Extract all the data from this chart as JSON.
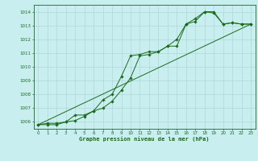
{
  "title": "Graphe pression niveau de la mer (hPa)",
  "bg_color": "#c8eef0",
  "grid_color": "#b0d8d8",
  "line_color": "#1a6b1a",
  "marker_color": "#1a6b1a",
  "xlim": [
    -0.5,
    23.5
  ],
  "ylim": [
    1005.5,
    1014.5
  ],
  "yticks": [
    1006,
    1007,
    1008,
    1009,
    1010,
    1011,
    1012,
    1013,
    1014
  ],
  "xticks": [
    0,
    1,
    2,
    3,
    4,
    5,
    6,
    7,
    8,
    9,
    10,
    11,
    12,
    13,
    14,
    15,
    16,
    17,
    18,
    19,
    20,
    21,
    22,
    23
  ],
  "line1": {
    "x": [
      0,
      1,
      2,
      3,
      4,
      5,
      6,
      7,
      8,
      9,
      10,
      11,
      12,
      13,
      14,
      15,
      16,
      17,
      18,
      19,
      20,
      21,
      22,
      23
    ],
    "y": [
      1005.8,
      1005.9,
      1005.9,
      1006.0,
      1006.1,
      1006.4,
      1006.8,
      1007.0,
      1007.5,
      1008.3,
      1009.2,
      1010.8,
      1010.9,
      1011.1,
      1011.5,
      1011.5,
      1013.1,
      1013.5,
      1014.0,
      1014.0,
      1013.1,
      1013.2,
      1013.1,
      1013.1
    ]
  },
  "line2": {
    "x": [
      0,
      1,
      2,
      3,
      4,
      5,
      6,
      7,
      8,
      9,
      10,
      11,
      12,
      13,
      14,
      15,
      16,
      17,
      18,
      19,
      20,
      21,
      22,
      23
    ],
    "y": [
      1005.8,
      1005.8,
      1005.8,
      1006.0,
      1006.5,
      1006.5,
      1006.8,
      1007.6,
      1008.0,
      1009.3,
      1010.8,
      1010.9,
      1011.1,
      1011.1,
      1011.5,
      1012.0,
      1013.1,
      1013.3,
      1014.0,
      1013.9,
      1013.1,
      1013.2,
      1013.1,
      1013.1
    ]
  },
  "line3": {
    "x": [
      0,
      23
    ],
    "y": [
      1005.8,
      1013.1
    ]
  },
  "figsize": [
    3.2,
    2.0
  ],
  "dpi": 100
}
